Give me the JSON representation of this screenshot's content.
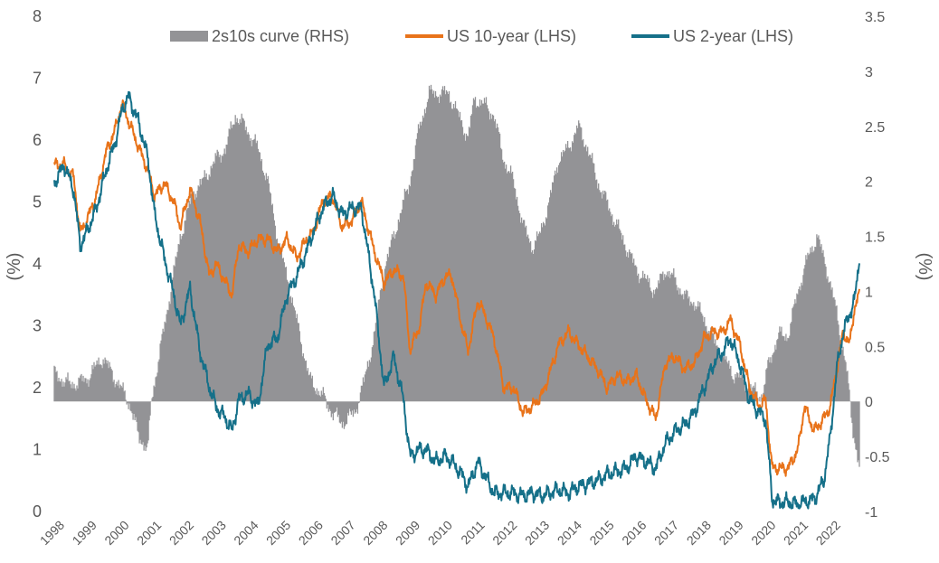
{
  "chart_data": {
    "type": "line",
    "legend_position": "top",
    "grid": false,
    "ylabel_left": "(%)",
    "ylabel_right": "(%)",
    "ylim_left": [
      0,
      8
    ],
    "ylim_right": [
      -1,
      3.5
    ],
    "yticks_left": [
      "0",
      "1",
      "2",
      "3",
      "4",
      "5",
      "6",
      "7",
      "8"
    ],
    "yticks_right": [
      "-1",
      "-0.5",
      "0",
      "0.5",
      "1",
      "1.5",
      "2",
      "2.5",
      "3",
      "3.5"
    ],
    "xticks": [
      "1998",
      "1999",
      "2000",
      "2001",
      "2002",
      "2003",
      "2004",
      "2005",
      "2006",
      "2007",
      "2008",
      "2009",
      "2010",
      "2011",
      "2012",
      "2013",
      "2014",
      "2015",
      "2016",
      "2017",
      "2018",
      "2019",
      "2020",
      "2021",
      "2022"
    ],
    "x_range": [
      1998.0,
      2022.9
    ],
    "series": [
      {
        "name": "2s10s curve (RHS)",
        "type": "area",
        "axis": "right",
        "color": "#939396",
        "x": [
          1998.0,
          1998.5,
          1999.0,
          1999.5,
          2000.0,
          2000.3,
          2000.6,
          2000.9,
          2001.0,
          2001.3,
          2001.6,
          2001.9,
          2002.3,
          2002.6,
          2003.0,
          2003.3,
          2003.6,
          2003.9,
          2004.3,
          2004.6,
          2004.9,
          2005.3,
          2005.6,
          2005.9,
          2006.3,
          2006.6,
          2006.9,
          2007.3,
          2007.6,
          2007.9,
          2008.2,
          2008.5,
          2008.8,
          2009.0,
          2009.3,
          2009.6,
          2009.9,
          2010.2,
          2010.5,
          2010.8,
          2011.0,
          2011.3,
          2011.6,
          2011.9,
          2012.2,
          2012.5,
          2012.8,
          2013.0,
          2013.3,
          2013.6,
          2013.9,
          2014.2,
          2014.5,
          2014.8,
          2015.1,
          2015.4,
          2015.7,
          2016.0,
          2016.3,
          2016.6,
          2016.9,
          2017.2,
          2017.5,
          2017.8,
          2018.1,
          2018.4,
          2018.7,
          2019.0,
          2019.3,
          2019.6,
          2019.9,
          2020.1,
          2020.4,
          2020.7,
          2021.0,
          2021.3,
          2021.6,
          2021.9,
          2022.2,
          2022.5,
          2022.7,
          2022.9
        ],
        "values": [
          0.25,
          0.15,
          0.2,
          0.4,
          0.15,
          0.0,
          -0.3,
          -0.45,
          0.0,
          0.5,
          1.0,
          1.5,
          1.9,
          2.0,
          2.2,
          2.3,
          2.6,
          2.5,
          2.3,
          2.0,
          1.5,
          1.0,
          0.6,
          0.2,
          0.05,
          -0.1,
          -0.2,
          -0.1,
          0.2,
          0.6,
          1.2,
          1.5,
          1.8,
          2.0,
          2.5,
          2.8,
          2.8,
          2.8,
          2.6,
          2.4,
          2.75,
          2.7,
          2.6,
          2.2,
          2.0,
          1.6,
          1.4,
          1.5,
          1.8,
          2.2,
          2.3,
          2.5,
          2.3,
          2.0,
          1.8,
          1.6,
          1.4,
          1.2,
          1.1,
          1.0,
          1.2,
          1.1,
          0.95,
          0.9,
          0.75,
          0.55,
          0.4,
          0.25,
          0.2,
          0.1,
          0.05,
          0.35,
          0.6,
          0.6,
          1.0,
          1.3,
          1.5,
          1.2,
          0.8,
          0.3,
          -0.25,
          -0.6
        ]
      },
      {
        "name": "US 10-year (LHS)",
        "type": "line",
        "axis": "left",
        "color": "#E8731A",
        "x": [
          1998.0,
          1998.3,
          1998.6,
          1998.8,
          1999.0,
          1999.3,
          1999.6,
          1999.9,
          2000.1,
          2000.3,
          2000.6,
          2000.9,
          2001.1,
          2001.4,
          2001.7,
          2001.9,
          2002.2,
          2002.5,
          2002.8,
          2003.0,
          2003.3,
          2003.5,
          2003.7,
          2004.0,
          2004.3,
          2004.6,
          2004.9,
          2005.2,
          2005.5,
          2005.8,
          2006.0,
          2006.3,
          2006.6,
          2006.9,
          2007.2,
          2007.5,
          2007.7,
          2007.9,
          2008.2,
          2008.5,
          2008.8,
          2009.0,
          2009.3,
          2009.5,
          2009.8,
          2010.1,
          2010.3,
          2010.6,
          2010.8,
          2011.1,
          2011.3,
          2011.6,
          2011.9,
          2012.2,
          2012.5,
          2012.8,
          2013.1,
          2013.3,
          2013.6,
          2013.9,
          2014.2,
          2014.5,
          2014.8,
          2015.1,
          2015.4,
          2015.7,
          2016.0,
          2016.3,
          2016.6,
          2016.9,
          2017.2,
          2017.5,
          2017.8,
          2018.1,
          2018.4,
          2018.7,
          2018.9,
          2019.2,
          2019.5,
          2019.8,
          2020.0,
          2020.2,
          2020.4,
          2020.7,
          2021.0,
          2021.2,
          2021.5,
          2021.8,
          2022.0,
          2022.2,
          2022.4,
          2022.6,
          2022.75,
          2022.9
        ],
        "values": [
          5.6,
          5.6,
          5.4,
          4.5,
          4.7,
          5.1,
          5.8,
          6.2,
          6.6,
          6.3,
          5.9,
          5.5,
          5.1,
          5.3,
          5.0,
          4.6,
          5.2,
          4.7,
          3.8,
          4.0,
          3.7,
          3.5,
          4.3,
          4.2,
          4.4,
          4.4,
          4.2,
          4.4,
          4.1,
          4.4,
          4.5,
          5.0,
          5.1,
          4.6,
          4.7,
          5.0,
          4.6,
          4.2,
          3.7,
          3.9,
          3.8,
          2.6,
          3.0,
          3.7,
          3.5,
          3.8,
          3.8,
          3.0,
          2.6,
          3.4,
          3.2,
          2.8,
          2.0,
          2.0,
          1.6,
          1.7,
          1.9,
          2.2,
          2.7,
          2.9,
          2.7,
          2.5,
          2.3,
          2.0,
          2.2,
          2.1,
          2.2,
          1.8,
          1.5,
          2.4,
          2.5,
          2.3,
          2.4,
          2.8,
          2.9,
          2.9,
          3.1,
          2.7,
          2.0,
          1.7,
          1.8,
          0.7,
          0.7,
          0.7,
          1.0,
          1.7,
          1.3,
          1.5,
          1.7,
          2.3,
          2.9,
          2.7,
          3.3,
          3.5
        ]
      },
      {
        "name": "US 2-year (LHS)",
        "type": "line",
        "axis": "left",
        "color": "#157089",
        "x": [
          1998.0,
          1998.3,
          1998.6,
          1998.8,
          1999.0,
          1999.3,
          1999.6,
          1999.9,
          2000.1,
          2000.3,
          2000.6,
          2000.9,
          2001.1,
          2001.4,
          2001.7,
          2001.9,
          2002.2,
          2002.5,
          2002.8,
          2003.0,
          2003.3,
          2003.5,
          2003.7,
          2004.0,
          2004.3,
          2004.6,
          2004.9,
          2005.2,
          2005.5,
          2005.8,
          2006.0,
          2006.3,
          2006.6,
          2006.9,
          2007.2,
          2007.5,
          2007.7,
          2007.9,
          2008.2,
          2008.5,
          2008.8,
          2009.0,
          2009.3,
          2009.5,
          2009.8,
          2010.1,
          2010.3,
          2010.6,
          2010.8,
          2011.1,
          2011.3,
          2011.6,
          2011.9,
          2012.2,
          2012.5,
          2012.8,
          2013.1,
          2013.3,
          2013.6,
          2013.9,
          2014.2,
          2014.5,
          2014.8,
          2015.1,
          2015.4,
          2015.7,
          2016.0,
          2016.3,
          2016.6,
          2016.9,
          2017.2,
          2017.5,
          2017.8,
          2018.1,
          2018.4,
          2018.7,
          2018.9,
          2019.2,
          2019.5,
          2019.8,
          2020.0,
          2020.2,
          2020.4,
          2020.7,
          2021.0,
          2021.2,
          2021.5,
          2021.8,
          2022.0,
          2022.2,
          2022.4,
          2022.6,
          2022.75,
          2022.9
        ],
        "values": [
          5.3,
          5.6,
          5.2,
          4.3,
          4.5,
          4.9,
          5.5,
          6.0,
          6.5,
          6.7,
          6.3,
          5.7,
          4.8,
          4.1,
          3.5,
          3.0,
          3.6,
          2.6,
          2.0,
          1.7,
          1.5,
          1.3,
          1.8,
          1.9,
          1.7,
          2.7,
          2.8,
          3.5,
          3.8,
          4.2,
          4.5,
          4.9,
          5.1,
          4.8,
          4.9,
          4.9,
          4.2,
          3.5,
          2.0,
          2.5,
          1.8,
          0.9,
          1.0,
          1.0,
          0.8,
          0.9,
          0.8,
          0.6,
          0.4,
          0.8,
          0.6,
          0.3,
          0.3,
          0.3,
          0.25,
          0.3,
          0.25,
          0.3,
          0.35,
          0.3,
          0.4,
          0.45,
          0.5,
          0.6,
          0.65,
          0.7,
          0.9,
          0.8,
          0.7,
          1.1,
          1.3,
          1.4,
          1.6,
          2.0,
          2.4,
          2.6,
          2.8,
          2.4,
          1.8,
          1.6,
          1.5,
          0.2,
          0.15,
          0.15,
          0.12,
          0.15,
          0.2,
          0.5,
          1.2,
          2.3,
          2.9,
          3.2,
          3.4,
          4.1
        ]
      }
    ]
  }
}
